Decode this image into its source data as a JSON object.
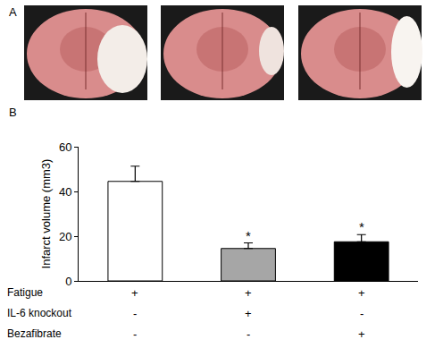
{
  "panel_labels": [
    "A",
    "B"
  ],
  "chart_data": {
    "type": "bar",
    "categories": [
      null,
      null,
      null
    ],
    "values": [
      44.5,
      14.5,
      17.5
    ],
    "errors": [
      6.8,
      2.5,
      3.2
    ],
    "colors": [
      "#ffffff",
      "#a6a6a6",
      "#000000"
    ],
    "ylabel": "Infarct volume (mm3)",
    "ylim": [
      0,
      60
    ],
    "yticks": [
      0,
      20,
      40,
      60
    ],
    "grid": false,
    "tick_labels": "y",
    "significance": [
      null,
      "*",
      "*"
    ],
    "conditions": [
      {
        "name": "Fatigue",
        "marks": [
          "+",
          "+",
          "+"
        ]
      },
      {
        "name": "IL-6 knockout",
        "marks": [
          "-",
          "+",
          "-"
        ]
      },
      {
        "name": "Bezafibrate",
        "marks": [
          "-",
          "-",
          "+"
        ]
      }
    ]
  }
}
